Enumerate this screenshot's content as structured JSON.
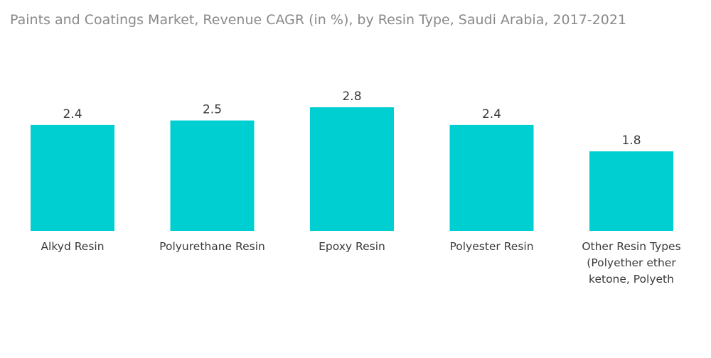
{
  "chart_data": {
    "type": "bar",
    "title": "Paints and Coatings Market, Revenue CAGR (in %), by Resin Type, Saudi Arabia, 2017-2021",
    "xlabel": "",
    "ylabel": "",
    "categories": [
      "Alkyd Resin",
      "Polyurethane Resin",
      "Epoxy Resin",
      "Polyester Resin",
      "Other Resin Types (Polyether ether ketone, Polyeth"
    ],
    "category_lines": [
      [
        "Alkyd Resin"
      ],
      [
        "Polyurethane Resin"
      ],
      [
        "Epoxy Resin"
      ],
      [
        "Polyester Resin"
      ],
      [
        "Other Resin Types",
        "(Polyether ether",
        "ketone, Polyeth"
      ]
    ],
    "values": [
      2.4,
      2.5,
      2.8,
      2.4,
      1.8
    ],
    "value_labels": [
      "2.4",
      "2.5",
      "2.8",
      "2.4",
      "1.8"
    ],
    "ylim": [
      0,
      2.8
    ],
    "grid": false,
    "legend": "none",
    "bar_color": "#00cfd1"
  }
}
